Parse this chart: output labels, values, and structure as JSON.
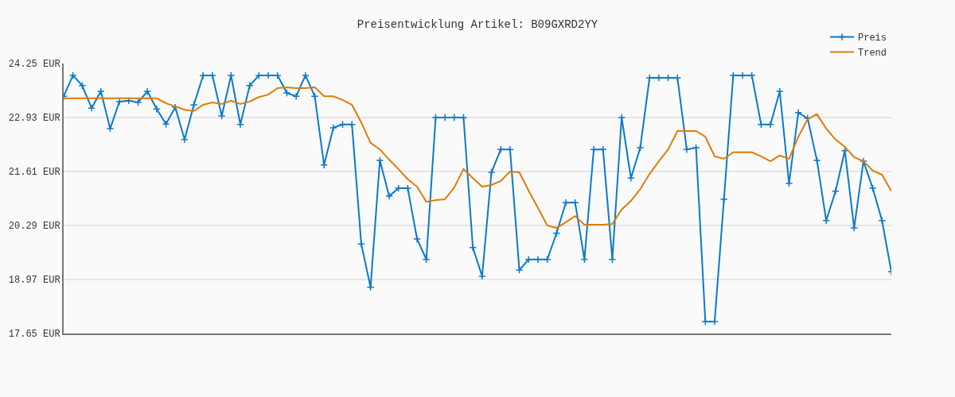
{
  "chart_data": {
    "type": "line",
    "title": "Preisentwicklung Artikel: B09GXRD2YY",
    "categories": [
      null,
      null,
      null,
      null,
      null,
      null,
      null,
      null,
      null,
      null,
      null,
      null,
      null,
      null,
      null,
      null,
      null,
      null,
      null,
      null,
      null,
      null,
      null,
      null,
      null,
      null,
      null,
      null,
      null,
      null,
      null,
      null,
      null,
      null,
      null,
      null,
      null,
      null,
      null,
      null,
      null,
      null,
      null,
      null,
      null,
      null,
      null,
      null,
      null,
      null,
      null,
      null,
      null,
      null,
      null,
      null,
      null,
      null,
      null,
      null,
      null,
      null,
      null,
      null,
      null,
      null,
      null,
      null,
      null,
      null,
      null,
      null,
      null,
      null,
      null,
      null,
      null,
      null,
      null,
      null,
      null,
      null,
      null,
      null,
      null,
      null,
      null,
      null,
      null,
      null
    ],
    "series": [
      {
        "name": "Preis",
        "color": "#0a7acc",
        "marker": "cross",
        "values": [
          23.45,
          23.96,
          23.71,
          23.16,
          23.57,
          22.66,
          23.32,
          23.34,
          23.3,
          23.57,
          23.14,
          22.77,
          23.18,
          22.39,
          23.24,
          23.96,
          23.96,
          22.97,
          23.96,
          22.76,
          23.71,
          23.96,
          23.96,
          23.96,
          23.53,
          23.45,
          23.96,
          23.45,
          21.77,
          22.68,
          22.76,
          22.76,
          19.84,
          18.78,
          21.88,
          21.01,
          21.2,
          21.2,
          19.96,
          19.46,
          22.93,
          22.93,
          22.93,
          22.93,
          19.75,
          19.05,
          21.59,
          22.15,
          22.15,
          19.2,
          19.46,
          19.46,
          19.46,
          20.1,
          20.85,
          20.85,
          19.46,
          22.15,
          22.15,
          19.46,
          22.93,
          21.45,
          22.19,
          23.9,
          23.9,
          23.9,
          23.9,
          22.15,
          22.19,
          17.94,
          17.94,
          20.93,
          23.96,
          23.96,
          23.96,
          22.76,
          22.76,
          23.57,
          21.32,
          23.05,
          22.91,
          21.88,
          20.41,
          21.13,
          22.12,
          20.23,
          21.86,
          21.2,
          20.41,
          19.16
        ]
      },
      {
        "name": "Trend",
        "color": "#e07b0b",
        "marker": "none",
        "values": [
          23.4,
          23.4,
          23.4,
          23.4,
          23.4,
          23.4,
          23.4,
          23.4,
          23.4,
          23.4,
          23.4,
          23.28,
          23.2,
          23.12,
          23.09,
          23.24,
          23.3,
          23.26,
          23.34,
          23.26,
          23.32,
          23.43,
          23.49,
          23.65,
          23.67,
          23.65,
          23.65,
          23.67,
          23.45,
          23.45,
          23.36,
          23.24,
          22.81,
          22.31,
          22.15,
          21.9,
          21.67,
          21.42,
          21.24,
          20.87,
          20.91,
          20.93,
          21.22,
          21.67,
          21.45,
          21.24,
          21.28,
          21.38,
          21.61,
          21.59,
          21.14,
          20.72,
          20.29,
          20.23,
          20.37,
          20.52,
          20.31,
          20.31,
          20.31,
          20.33,
          20.68,
          20.89,
          21.18,
          21.55,
          21.86,
          22.15,
          22.6,
          22.6,
          22.6,
          22.46,
          21.98,
          21.92,
          22.08,
          22.08,
          22.08,
          21.98,
          21.86,
          22.0,
          21.92,
          22.46,
          22.89,
          23.01,
          22.66,
          22.39,
          22.21,
          21.96,
          21.86,
          21.63,
          21.53,
          21.13
        ]
      }
    ],
    "ylim": [
      17.65,
      24.25
    ],
    "yticks": [
      {
        "value": 17.65,
        "label": "17.65 EUR"
      },
      {
        "value": 18.97,
        "label": "18.97 EUR"
      },
      {
        "value": 20.29,
        "label": "20.29 EUR"
      },
      {
        "value": 21.61,
        "label": "21.61 EUR"
      },
      {
        "value": 22.93,
        "label": "22.93 EUR"
      },
      {
        "value": 24.25,
        "label": "24.25 EUR"
      }
    ],
    "grid": "y",
    "legend": "top right",
    "line_style": "solid"
  }
}
